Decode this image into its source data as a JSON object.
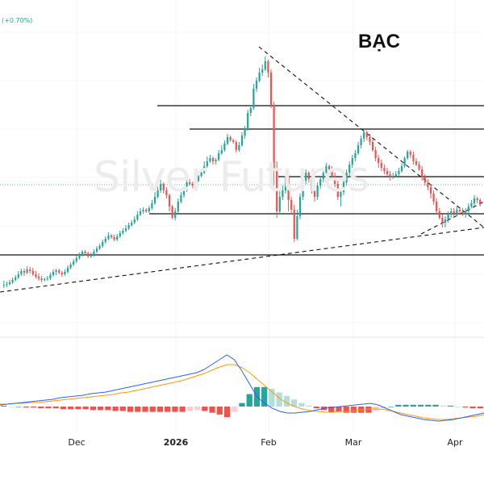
{
  "header": {
    "change_label": "(+0.70%)"
  },
  "chart_data": {
    "type": "candlestick",
    "title": "BẠC",
    "watermark": "Silver Futures",
    "x_axis_labels": [
      "Dec",
      "2026",
      "Feb",
      "Mar",
      "Apr"
    ],
    "colors": {
      "up": "#26a69a",
      "down": "#ef5350",
      "macd_line": "#2962ff",
      "signal_line": "#ff9800",
      "hist_up_strong": "#26a69a",
      "hist_up_weak": "#b2dfdb",
      "hist_down_strong": "#ef5350",
      "hist_down_weak": "#ffcdd2"
    },
    "candles": [
      [
        354,
        353,
        348,
        357
      ],
      [
        353,
        352,
        349,
        356
      ],
      [
        352,
        350,
        347,
        354
      ],
      [
        350,
        347,
        344,
        352
      ],
      [
        347,
        344,
        341,
        349
      ],
      [
        344,
        340,
        336,
        346
      ],
      [
        340,
        336,
        333,
        342
      ],
      [
        336,
        338,
        333,
        342
      ],
      [
        338,
        334,
        330,
        340
      ],
      [
        334,
        336,
        331,
        339
      ],
      [
        336,
        340,
        332,
        342
      ],
      [
        340,
        343,
        336,
        345
      ],
      [
        343,
        345,
        339,
        348
      ],
      [
        345,
        347,
        342,
        350
      ],
      [
        347,
        346,
        344,
        349
      ],
      [
        346,
        345,
        342,
        348
      ],
      [
        345,
        341,
        338,
        347
      ],
      [
        341,
        337,
        334,
        343
      ],
      [
        337,
        335,
        333,
        341
      ],
      [
        335,
        338,
        333,
        340
      ],
      [
        338,
        340,
        336,
        343
      ],
      [
        340,
        337,
        334,
        342
      ],
      [
        337,
        332,
        329,
        339
      ],
      [
        332,
        328,
        325,
        334
      ],
      [
        328,
        324,
        321,
        330
      ],
      [
        324,
        320,
        317,
        326
      ],
      [
        320,
        316,
        313,
        322
      ],
      [
        316,
        312,
        310,
        318
      ],
      [
        312,
        314,
        310,
        316
      ],
      [
        314,
        318,
        312,
        320
      ],
      [
        318,
        316,
        313,
        320
      ],
      [
        316,
        312,
        309,
        318
      ],
      [
        312,
        308,
        305,
        314
      ],
      [
        308,
        305,
        302,
        310
      ],
      [
        305,
        300,
        297,
        307
      ],
      [
        300,
        296,
        293,
        302
      ],
      [
        296,
        292,
        288,
        298
      ],
      [
        292,
        294,
        290,
        296
      ],
      [
        294,
        297,
        291,
        299
      ],
      [
        297,
        293,
        290,
        299
      ],
      [
        293,
        289,
        286,
        295
      ],
      [
        289,
        286,
        283,
        291
      ],
      [
        286,
        283,
        279,
        288
      ],
      [
        283,
        279,
        276,
        285
      ],
      [
        279,
        276,
        273,
        281
      ],
      [
        276,
        272,
        268,
        278
      ],
      [
        272,
        266,
        262,
        274
      ],
      [
        266,
        262,
        258,
        268
      ],
      [
        262,
        260,
        257,
        265
      ],
      [
        260,
        262,
        258,
        264
      ],
      [
        262,
        258,
        255,
        264
      ],
      [
        258,
        252,
        248,
        260
      ],
      [
        252,
        244,
        238,
        254
      ],
      [
        244,
        236,
        230,
        246
      ],
      [
        236,
        228,
        223,
        239
      ],
      [
        228,
        236,
        226,
        240
      ],
      [
        236,
        242,
        232,
        246
      ],
      [
        242,
        256,
        240,
        262
      ],
      [
        256,
        270,
        254,
        272
      ],
      [
        270,
        262,
        258,
        273
      ],
      [
        262,
        250,
        246,
        264
      ],
      [
        250,
        242,
        238,
        252
      ],
      [
        242,
        236,
        232,
        245
      ],
      [
        236,
        226,
        220,
        238
      ],
      [
        226,
        228,
        222,
        230
      ],
      [
        228,
        230,
        225,
        233
      ],
      [
        230,
        224,
        220,
        232
      ],
      [
        224,
        218,
        214,
        226
      ],
      [
        218,
        214,
        210,
        220
      ],
      [
        214,
        206,
        200,
        216
      ],
      [
        206,
        200,
        194,
        208
      ],
      [
        200,
        196,
        192,
        202
      ],
      [
        196,
        200,
        194,
        204
      ],
      [
        200,
        198,
        196,
        204
      ],
      [
        198,
        190,
        186,
        200
      ],
      [
        190,
        186,
        180,
        192
      ],
      [
        186,
        178,
        174,
        188
      ],
      [
        178,
        170,
        166,
        180
      ],
      [
        170,
        174,
        168,
        176
      ],
      [
        174,
        176,
        172,
        178
      ],
      [
        176,
        186,
        174,
        189
      ],
      [
        186,
        180,
        176,
        188
      ],
      [
        180,
        168,
        164,
        182
      ],
      [
        168,
        160,
        156,
        172
      ],
      [
        160,
        140,
        136,
        162
      ],
      [
        140,
        134,
        130,
        144
      ],
      [
        134,
        110,
        104,
        136
      ],
      [
        110,
        100,
        96,
        114
      ],
      [
        100,
        90,
        84,
        102
      ],
      [
        90,
        86,
        80,
        94
      ],
      [
        86,
        76,
        70,
        88
      ],
      [
        76,
        90,
        74,
        96
      ],
      [
        90,
        130,
        86,
        134
      ],
      [
        130,
        210,
        126,
        230
      ],
      [
        210,
        262,
        200,
        270
      ],
      [
        262,
        244,
        236,
        266
      ],
      [
        244,
        236,
        230,
        248
      ],
      [
        236,
        218,
        210,
        240
      ],
      [
        218,
        248,
        214,
        262
      ],
      [
        248,
        260,
        244,
        265
      ],
      [
        260,
        296,
        254,
        300
      ],
      [
        296,
        268,
        260,
        298
      ],
      [
        268,
        244,
        240,
        272
      ],
      [
        244,
        224,
        220,
        248
      ],
      [
        224,
        214,
        210,
        228
      ],
      [
        214,
        222,
        212,
        226
      ],
      [
        222,
        236,
        218,
        240
      ],
      [
        236,
        244,
        232,
        250
      ],
      [
        244,
        230,
        226,
        248
      ],
      [
        230,
        222,
        218,
        234
      ],
      [
        222,
        214,
        210,
        226
      ],
      [
        214,
        206,
        202,
        218
      ],
      [
        206,
        210,
        204,
        214
      ],
      [
        210,
        218,
        206,
        220
      ],
      [
        218,
        228,
        214,
        232
      ],
      [
        228,
        244,
        224,
        248
      ],
      [
        244,
        238,
        234,
        256
      ],
      [
        238,
        226,
        222,
        242
      ],
      [
        226,
        214,
        210,
        230
      ],
      [
        214,
        204,
        200,
        218
      ],
      [
        204,
        196,
        192,
        208
      ],
      [
        196,
        190,
        186,
        200
      ],
      [
        190,
        180,
        176,
        192
      ],
      [
        180,
        172,
        168,
        184
      ],
      [
        172,
        164,
        160,
        176
      ],
      [
        164,
        170,
        162,
        174
      ],
      [
        170,
        176,
        166,
        180
      ],
      [
        176,
        186,
        172,
        188
      ],
      [
        186,
        196,
        182,
        200
      ],
      [
        196,
        202,
        192,
        208
      ],
      [
        202,
        208,
        198,
        212
      ],
      [
        208,
        212,
        204,
        216
      ],
      [
        212,
        216,
        208,
        218
      ],
      [
        216,
        220,
        212,
        224
      ],
      [
        220,
        218,
        214,
        222
      ],
      [
        218,
        216,
        212,
        220
      ],
      [
        216,
        212,
        208,
        218
      ],
      [
        212,
        206,
        202,
        214
      ],
      [
        206,
        196,
        194,
        208
      ],
      [
        196,
        188,
        186,
        198
      ],
      [
        188,
        192,
        186,
        196
      ],
      [
        192,
        200,
        188,
        204
      ],
      [
        200,
        204,
        196,
        206
      ],
      [
        204,
        210,
        200,
        212
      ],
      [
        210,
        220,
        206,
        224
      ],
      [
        220,
        226,
        216,
        230
      ],
      [
        226,
        232,
        222,
        236
      ],
      [
        232,
        240,
        228,
        246
      ],
      [
        240,
        250,
        236,
        254
      ],
      [
        250,
        262,
        246,
        266
      ],
      [
        262,
        270,
        258,
        272
      ],
      [
        270,
        276,
        266,
        282
      ],
      [
        276,
        272,
        268,
        282
      ],
      [
        272,
        266,
        262,
        276
      ],
      [
        266,
        262,
        258,
        270
      ],
      [
        262,
        264,
        258,
        268
      ],
      [
        264,
        260,
        256,
        268
      ],
      [
        260,
        262,
        258,
        266
      ],
      [
        262,
        266,
        258,
        268
      ],
      [
        266,
        262,
        258,
        270
      ],
      [
        262,
        256,
        252,
        266
      ],
      [
        256,
        252,
        248,
        258
      ],
      [
        252,
        246,
        242,
        256
      ],
      [
        246,
        248,
        244,
        252
      ],
      [
        248,
        252,
        246,
        256
      ]
    ],
    "trend_lines": [
      {
        "from": [
          0.535,
          58
        ],
        "to": [
          1.0,
          282
        ],
        "style": "dashed"
      },
      {
        "from": [
          0.0,
          362
        ],
        "to": [
          1.0,
          282
        ],
        "style": "dashed"
      },
      {
        "from": [
          0.87,
          290
        ],
        "to": [
          1.0,
          250
        ],
        "style": "dashed"
      }
    ],
    "horizontal_levels": [
      131,
      160,
      219,
      265,
      316
    ],
    "macd": {
      "macd_line": [
        502,
        501,
        500,
        499,
        498,
        497,
        496,
        495,
        493,
        492,
        491,
        490,
        488,
        487,
        486,
        484,
        482,
        480,
        478,
        476,
        474,
        472,
        470,
        468,
        466,
        464,
        462,
        458,
        452,
        446,
        440,
        446,
        460,
        476,
        492,
        500,
        506,
        510,
        512,
        512,
        511,
        510,
        508,
        506,
        505,
        504,
        503,
        502,
        501,
        500,
        502,
        506,
        510,
        514,
        516,
        518,
        520,
        521,
        522,
        521,
        520,
        518,
        516,
        514,
        512
      ],
      "signal_line": [
        501,
        501,
        500,
        500,
        499,
        499,
        498,
        497,
        496,
        495,
        494,
        493,
        492,
        491,
        490,
        489,
        487,
        486,
        484,
        482,
        480,
        478,
        476,
        474,
        472,
        469,
        466,
        463,
        459,
        455,
        452,
        452,
        456,
        462,
        470,
        478,
        486,
        494,
        500,
        504,
        507,
        509,
        510,
        511,
        511,
        510,
        510,
        509,
        508,
        507,
        507,
        508,
        510,
        512,
        514,
        516,
        518,
        519,
        520,
        520,
        519,
        518,
        517,
        516,
        514
      ],
      "histogram": [
        1,
        0,
        0,
        -1,
        -1,
        -2,
        -2,
        -2,
        -3,
        -3,
        -3,
        -3,
        -4,
        -4,
        -4,
        -5,
        -5,
        -6,
        -6,
        -6,
        -6,
        -6,
        -6,
        -6,
        -6,
        -5,
        -4,
        -5,
        -7,
        -9,
        -12,
        -6,
        4,
        14,
        22,
        22,
        20,
        16,
        12,
        8,
        4,
        1,
        -2,
        -4,
        -6,
        -6,
        -7,
        -7,
        -7,
        -7,
        -5,
        -2,
        0,
        2,
        2,
        2,
        2,
        2,
        2,
        1,
        1,
        0,
        -1,
        -2,
        -2
      ]
    }
  }
}
